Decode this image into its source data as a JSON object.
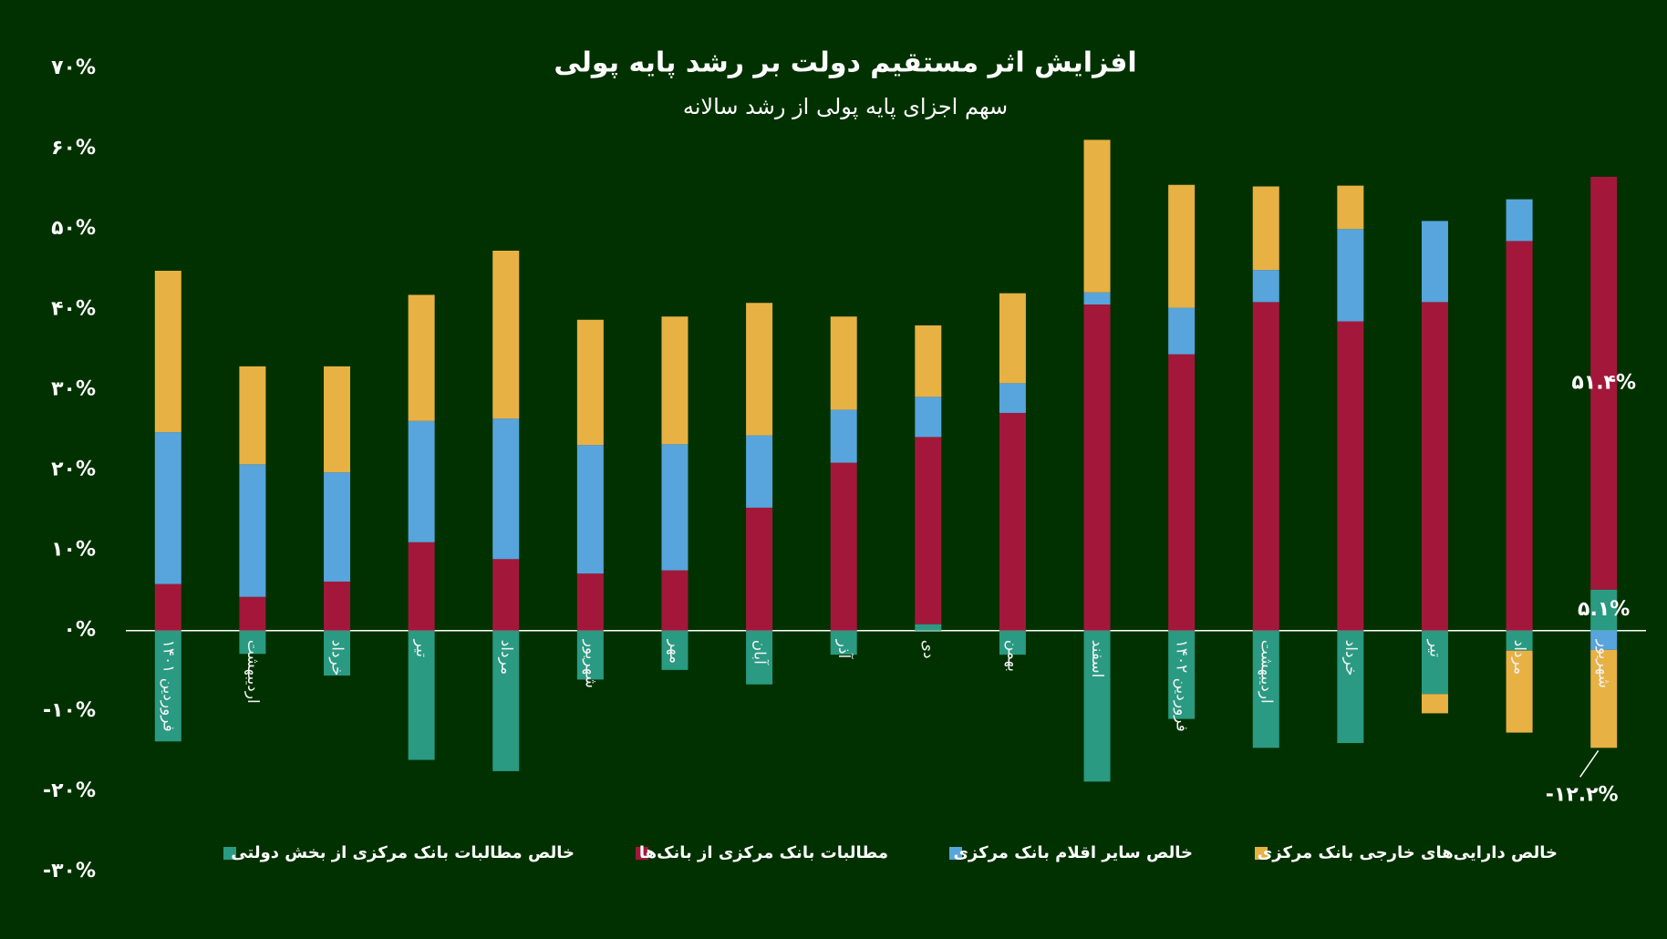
{
  "chart_data": {
    "type": "stacked-bar",
    "title": "افزایش اثر مستقیم دولت بر رشد پایه پولی",
    "subtitle": "سهم اجزای پایه پولی از رشد سالانه",
    "categories": [
      "فروردین ۱۴۰۱",
      "اردیبهشت",
      "خرداد",
      "تیر",
      "مرداد",
      "شهریور",
      "مهر",
      "آبان",
      "آذر",
      "دی",
      "بهمن",
      "اسفند",
      "فروردین ۱۴۰۲",
      "اردیبهشت",
      "خرداد",
      "تیر",
      "مرداد",
      "شهریور"
    ],
    "series": [
      {
        "name": "خالص مطالبات بانک مرکزی از بخش دولتی",
        "color": "#2a9a82",
        "values": [
          -13.8,
          -2.9,
          -5.6,
          -16.1,
          -17.5,
          -6.1,
          -4.9,
          -6.7,
          -3.0,
          0.8,
          -3.0,
          -18.8,
          -11.0,
          -14.6,
          -14.0,
          -7.9,
          -2.5,
          5.1
        ],
        "value_labels": [
          null,
          null,
          null,
          null,
          null,
          null,
          null,
          null,
          null,
          null,
          null,
          null,
          null,
          null,
          null,
          null,
          null,
          "۵.۱%"
        ]
      },
      {
        "name": "مطالبات بانک مرکزی از بانک‌ها",
        "color": "#a3183a",
        "values": [
          5.8,
          4.2,
          6.1,
          11.0,
          8.9,
          7.1,
          7.5,
          15.3,
          20.9,
          23.3,
          27.1,
          40.6,
          34.4,
          40.9,
          38.5,
          40.9,
          48.5,
          51.4
        ],
        "value_labels": [
          null,
          null,
          null,
          null,
          null,
          null,
          null,
          null,
          null,
          null,
          null,
          null,
          null,
          null,
          null,
          null,
          null,
          "۵۱.۴%"
        ]
      },
      {
        "name": "خالص سایر اقلام بانک مرکزی",
        "color": "#58a4dc",
        "values": [
          18.9,
          16.5,
          13.6,
          15.1,
          17.5,
          16.0,
          15.7,
          9.0,
          6.6,
          5.0,
          3.7,
          1.5,
          5.8,
          4.0,
          11.5,
          10.1,
          5.2,
          -2.4
        ]
      },
      {
        "name": "خالص دارایی‌های خارجی بانک مرکزی",
        "color": "#e8b144",
        "values": [
          20.1,
          12.2,
          13.2,
          15.7,
          20.9,
          15.6,
          15.9,
          16.5,
          11.6,
          8.9,
          11.2,
          19.0,
          15.3,
          10.4,
          5.4,
          -2.4,
          -10.2,
          -12.2
        ],
        "value_labels": [
          null,
          null,
          null,
          null,
          null,
          null,
          null,
          null,
          null,
          null,
          null,
          null,
          null,
          null,
          null,
          null,
          null,
          "-۱۲.۲%"
        ]
      }
    ],
    "ylim": [
      -30,
      70
    ],
    "yticks": [
      {
        "value": -30,
        "label": "-۳۰%"
      },
      {
        "value": -20,
        "label": "-۲۰%"
      },
      {
        "value": -10,
        "label": "-۱۰%"
      },
      {
        "value": 0,
        "label": "۰%"
      },
      {
        "value": 10,
        "label": "۱۰%"
      },
      {
        "value": 20,
        "label": "۲۰%"
      },
      {
        "value": 30,
        "label": "۳۰%"
      },
      {
        "value": 40,
        "label": "۴۰%"
      },
      {
        "value": 50,
        "label": "۵۰%"
      },
      {
        "value": 60,
        "label": "۶۰%"
      },
      {
        "value": 70,
        "label": "۷۰%"
      }
    ],
    "grid": false
  }
}
